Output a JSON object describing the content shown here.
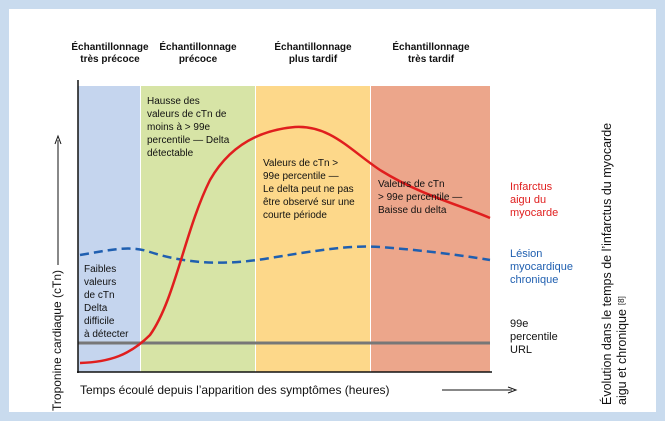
{
  "zones": [
    {
      "header": [
        "Échantillonnage",
        "très précoce"
      ],
      "text": [
        "Faibles",
        "valeurs",
        "de cTn",
        "Delta",
        "difficile",
        "à détecter"
      ]
    },
    {
      "header": [
        "Échantillonnage",
        "précoce"
      ],
      "text": [
        "Hausse des",
        "valeurs de cTn de",
        "moins à > 99e",
        "percentile — Delta",
        "détectable"
      ]
    },
    {
      "header": [
        "Échantillonnage",
        "plus tardif"
      ],
      "text": [
        "Valeurs de cTn >",
        "99e percentile —",
        "Le delta peut ne pas",
        "être observé sur une",
        "courte période"
      ]
    },
    {
      "header": [
        "Échantillonnage",
        "très tardif"
      ],
      "text": [
        "Valeurs de cTn",
        "> 99e percentile —",
        "Baisse du delta"
      ]
    }
  ],
  "legend": [
    {
      "lines": [
        "Infarctus",
        "aigu du",
        "myocarde"
      ]
    },
    {
      "lines": [
        "Lésion",
        "myocardique",
        "chronique"
      ]
    },
    {
      "lines": [
        "99e",
        "percentile",
        "URL"
      ]
    }
  ],
  "y_axis_label": "Troponine cardiaque (cTn)",
  "x_axis_label": "Temps écoulé depuis l’apparition des symptômes (heures)",
  "title": [
    "Évolution dans le temps de l’infarctus du myocarde",
    "aigu et chronique"
  ],
  "reference": "[8]"
}
